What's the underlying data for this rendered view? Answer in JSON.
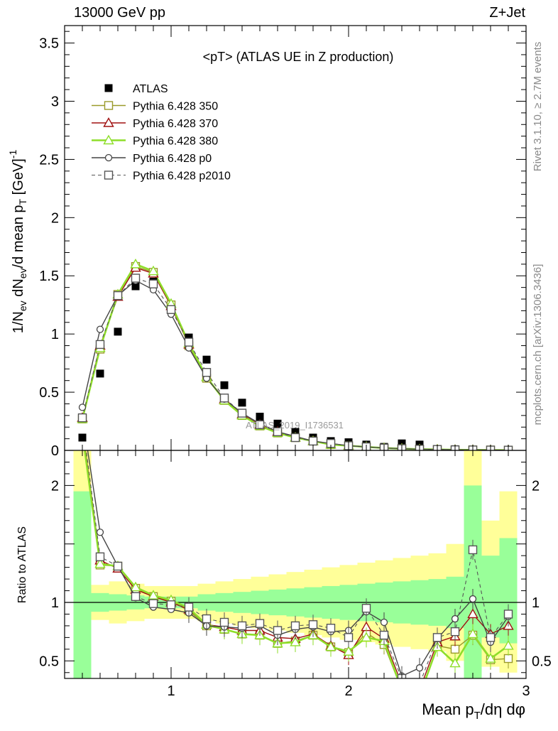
{
  "header": {
    "energy_label": "13000 GeV pp",
    "process_label": "Z+Jet"
  },
  "side_labels": {
    "rivet": "Rivet 3.1.10, ≥ 2.7M events",
    "mcplots": "mcplots.cern.ch [arXiv:1306.3436]"
  },
  "watermark": "ATLAS_2019_I1736531",
  "chart_data": [
    {
      "type": "scatter",
      "panel": "main",
      "title": "<pT> (ATLAS UE in Z production)",
      "ylabel": "1/N_ev dN_ev/d mean p_T [GeV]^-1",
      "xlim": [
        0.4,
        3.0
      ],
      "ylim": [
        0,
        3.65
      ],
      "y_ticks": [
        0,
        0.5,
        1,
        1.5,
        2,
        2.5,
        3,
        3.5
      ],
      "y_tick_labels": [
        "0",
        "0.5",
        "1",
        "1.5",
        "2",
        "2.5",
        "3",
        "3.5"
      ],
      "x": [
        0.5,
        0.6,
        0.7,
        0.8,
        0.9,
        1.0,
        1.1,
        1.2,
        1.3,
        1.4,
        1.5,
        1.6,
        1.7,
        1.8,
        1.9,
        2.0,
        2.1,
        2.2,
        2.3,
        2.4,
        2.5,
        2.6,
        2.7,
        2.8,
        2.9
      ],
      "legend_position": "top-left",
      "series": [
        {
          "name": "ATLAS",
          "style": "data",
          "color": "#000000",
          "values": [
            0.11,
            0.66,
            1.02,
            1.41,
            1.45,
            1.24,
            0.97,
            0.78,
            0.56,
            0.41,
            0.29,
            0.23,
            0.16,
            0.11,
            0.08,
            0.07,
            0.05,
            0.03,
            0.06,
            0.05,
            0.01,
            0.01,
            0.005,
            0.003,
            0.002
          ]
        },
        {
          "name": "Pythia 6.428 350",
          "style": "open-square-solid",
          "color": "#9a9a2a",
          "values": [
            0.27,
            0.87,
            1.34,
            1.58,
            1.53,
            1.25,
            0.9,
            0.62,
            0.43,
            0.3,
            0.21,
            0.15,
            0.11,
            0.08,
            0.05,
            0.04,
            0.03,
            0.02,
            0.015,
            0.01,
            0.008,
            0.005,
            0.004,
            0.003,
            0.002
          ]
        },
        {
          "name": "Pythia 6.428 370",
          "style": "open-triangle-solid",
          "color": "#a01010",
          "values": [
            0.28,
            0.9,
            1.32,
            1.57,
            1.52,
            1.24,
            0.91,
            0.63,
            0.44,
            0.31,
            0.22,
            0.16,
            0.11,
            0.08,
            0.05,
            0.04,
            0.03,
            0.02,
            0.015,
            0.01,
            0.008,
            0.005,
            0.004,
            0.003,
            0.002
          ]
        },
        {
          "name": "Pythia 6.428 380",
          "style": "open-triangle-thick",
          "color": "#8ede2a",
          "values": [
            0.27,
            0.88,
            1.34,
            1.6,
            1.54,
            1.26,
            0.92,
            0.63,
            0.43,
            0.3,
            0.21,
            0.15,
            0.11,
            0.08,
            0.05,
            0.04,
            0.03,
            0.02,
            0.015,
            0.01,
            0.008,
            0.005,
            0.004,
            0.003,
            0.002
          ]
        },
        {
          "name": "Pythia 6.428 p0",
          "style": "open-circle-solid",
          "color": "#444444",
          "values": [
            0.37,
            1.04,
            1.33,
            1.46,
            1.38,
            1.17,
            0.88,
            0.62,
            0.44,
            0.32,
            0.23,
            0.16,
            0.12,
            0.08,
            0.06,
            0.04,
            0.03,
            0.02,
            0.015,
            0.01,
            0.008,
            0.005,
            0.004,
            0.003,
            0.002
          ]
        },
        {
          "name": "Pythia 6.428 p2010",
          "style": "open-square-dashed",
          "color": "#555555",
          "values": [
            0.28,
            0.91,
            1.33,
            1.48,
            1.43,
            1.21,
            0.93,
            0.67,
            0.45,
            0.32,
            0.22,
            0.16,
            0.11,
            0.08,
            0.06,
            0.04,
            0.03,
            0.02,
            0.015,
            0.01,
            0.008,
            0.005,
            0.004,
            0.003,
            0.002
          ]
        }
      ]
    },
    {
      "type": "line",
      "panel": "ratio",
      "xlabel": "Mean p_T/dη dφ",
      "ylabel": "Ratio to ATLAS",
      "xlim": [
        0.4,
        3.0
      ],
      "ylim": [
        0.35,
        2.3
      ],
      "x_ticks": [
        1,
        2,
        3
      ],
      "x_tick_labels": [
        "1",
        "2",
        "3"
      ],
      "y_ticks": [
        0.5,
        1,
        2
      ],
      "y_tick_labels": [
        "0.5",
        "1",
        "2"
      ],
      "reference_line": 1,
      "x": [
        0.5,
        0.6,
        0.7,
        0.8,
        0.9,
        1.0,
        1.1,
        1.2,
        1.3,
        1.4,
        1.5,
        1.6,
        1.7,
        1.8,
        1.9,
        2.0,
        2.1,
        2.2,
        2.3,
        2.4,
        2.5,
        2.6,
        2.7,
        2.8,
        2.9
      ],
      "band_green": [
        [
          0.2,
          1.95
        ],
        [
          0.92,
          1.08
        ],
        [
          0.93,
          1.07
        ],
        [
          0.94,
          1.06
        ],
        [
          0.95,
          1.05
        ],
        [
          0.95,
          1.05
        ],
        [
          0.95,
          1.05
        ],
        [
          0.93,
          1.07
        ],
        [
          0.92,
          1.08
        ],
        [
          0.91,
          1.09
        ],
        [
          0.9,
          1.1
        ],
        [
          0.89,
          1.11
        ],
        [
          0.88,
          1.12
        ],
        [
          0.87,
          1.13
        ],
        [
          0.86,
          1.14
        ],
        [
          0.85,
          1.15
        ],
        [
          0.84,
          1.16
        ],
        [
          0.83,
          1.17
        ],
        [
          0.82,
          1.18
        ],
        [
          0.81,
          1.19
        ],
        [
          0.8,
          1.2
        ],
        [
          0.78,
          1.22
        ],
        [
          0.2,
          2.0
        ],
        [
          0.7,
          1.4
        ],
        [
          0.65,
          1.55
        ]
      ],
      "band_yellow": [
        [
          0.2,
          2.5
        ],
        [
          0.85,
          1.15
        ],
        [
          0.82,
          1.18
        ],
        [
          0.84,
          1.16
        ],
        [
          0.86,
          1.14
        ],
        [
          0.86,
          1.14
        ],
        [
          0.86,
          1.14
        ],
        [
          0.84,
          1.16
        ],
        [
          0.82,
          1.18
        ],
        [
          0.8,
          1.2
        ],
        [
          0.78,
          1.22
        ],
        [
          0.76,
          1.24
        ],
        [
          0.74,
          1.26
        ],
        [
          0.72,
          1.28
        ],
        [
          0.7,
          1.3
        ],
        [
          0.68,
          1.32
        ],
        [
          0.66,
          1.34
        ],
        [
          0.64,
          1.36
        ],
        [
          0.62,
          1.38
        ],
        [
          0.6,
          1.4
        ],
        [
          0.58,
          1.42
        ],
        [
          0.5,
          1.5
        ],
        [
          0.2,
          2.5
        ],
        [
          0.45,
          1.7
        ],
        [
          0.4,
          1.95
        ]
      ],
      "series": [
        {
          "name": "Pythia 6.428 350",
          "color": "#9a9a2a",
          "values": [
            2.45,
            1.32,
            1.31,
            1.12,
            1.05,
            1.01,
            0.93,
            0.8,
            0.77,
            0.73,
            0.72,
            0.65,
            0.67,
            0.72,
            0.62,
            0.57,
            0.74,
            0.64,
            0.25,
            0.2,
            0.63,
            0.6,
            0.72,
            0.51,
            0.52
          ]
        },
        {
          "name": "Pythia 6.428 370",
          "color": "#a01010",
          "values": [
            2.5,
            1.36,
            1.29,
            1.11,
            1.05,
            1.0,
            0.94,
            0.81,
            0.79,
            0.76,
            0.76,
            0.7,
            0.69,
            0.73,
            0.63,
            0.55,
            0.79,
            0.69,
            0.3,
            0.25,
            0.66,
            0.71,
            0.9,
            0.73,
            0.8
          ]
        },
        {
          "name": "Pythia 6.428 380",
          "color": "#8ede2a",
          "values": [
            2.45,
            1.33,
            1.31,
            1.13,
            1.06,
            1.02,
            0.95,
            0.81,
            0.77,
            0.73,
            0.72,
            0.65,
            0.66,
            0.72,
            0.62,
            0.58,
            0.7,
            0.67,
            0.25,
            0.2,
            0.62,
            0.48,
            0.73,
            0.52,
            0.63
          ]
        },
        {
          "name": "Pythia 6.428 p0",
          "color": "#444444",
          "values": [
            2.6,
            1.6,
            1.31,
            1.04,
            0.96,
            0.94,
            0.91,
            0.8,
            0.79,
            0.78,
            0.8,
            0.72,
            0.77,
            0.79,
            0.75,
            0.76,
            0.92,
            0.83,
            0.37,
            0.44,
            0.69,
            0.86,
            1.03,
            0.66,
            0.88
          ]
        },
        {
          "name": "Pythia 6.428 p2010",
          "color": "#555555",
          "values": [
            2.55,
            1.39,
            1.31,
            1.05,
            0.99,
            0.98,
            0.96,
            0.86,
            0.83,
            0.8,
            0.82,
            0.76,
            0.8,
            0.81,
            0.78,
            0.7,
            0.95,
            0.72,
            0.35,
            0.3,
            0.7,
            0.75,
            1.45,
            0.7,
            0.9
          ]
        }
      ]
    }
  ]
}
